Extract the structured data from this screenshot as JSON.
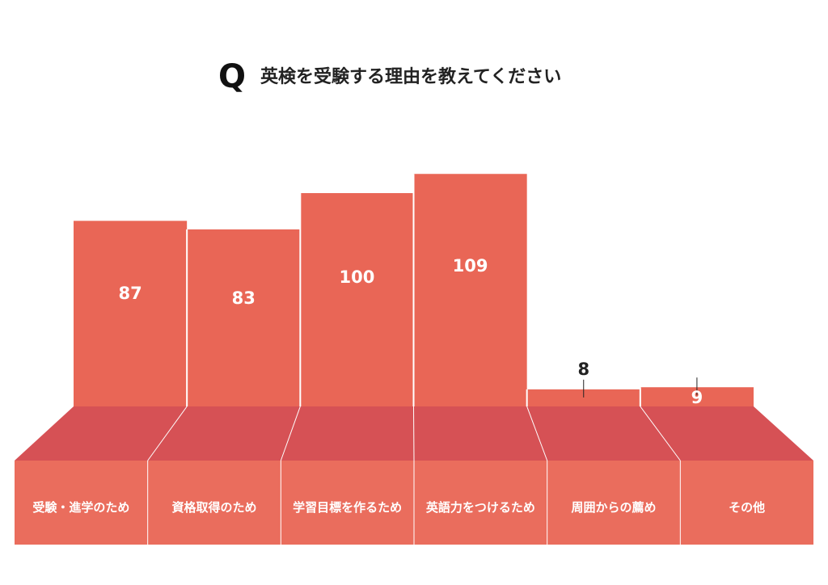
{
  "title": {
    "q_mark": "Q",
    "text": "英検を受験する理由を教えてください"
  },
  "chart_data": {
    "type": "bar",
    "title": "英検を受験する理由を教えてください",
    "categories": [
      "受験・進学のため",
      "資格取得のため",
      "学習目標を作るため",
      "英語力をつけるため",
      "周囲からの薦め",
      "その他"
    ],
    "values": [
      87,
      83,
      100,
      109,
      8,
      9
    ],
    "ylim": [
      0,
      120
    ],
    "grid": false,
    "legend": "none",
    "colors": {
      "bar": "#E96656",
      "floor_top": "#D65155",
      "floor_front": "#EA6D5D",
      "label_text": "#FFFFFF",
      "value_text": "#FFFFFF",
      "value_text_outside": "#222222",
      "divider": "#FFFFFF"
    }
  }
}
